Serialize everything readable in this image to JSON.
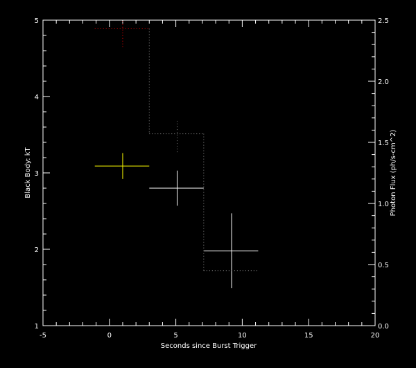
{
  "chart_data": {
    "type": "scatter",
    "xlabel": "Seconds since Burst Trigger",
    "ylabel": "Black Body: kT",
    "ylabel_right": "Photon Flux (ph/s-cm^2)",
    "xlim": [
      -5,
      20
    ],
    "ylim": [
      1,
      5
    ],
    "ylim_right": [
      0,
      2.5
    ],
    "x_ticks": [
      "-5",
      "0",
      "5",
      "10",
      "15",
      "20"
    ],
    "y_ticks": [
      "1",
      "2",
      "3",
      "4",
      "5"
    ],
    "y_ticks_right": [
      "0.0",
      "0.5",
      "1.0",
      "1.5",
      "2.0",
      "2.5"
    ],
    "grid": false,
    "series": [
      {
        "style": "crosses",
        "axis": "left",
        "points": [
          {
            "x": 1.0,
            "xlo": -1.1,
            "xhi": 3.0,
            "y": 3.09,
            "ylo": 2.92,
            "yhi": 3.26,
            "color": "#ffff00"
          },
          {
            "x": 5.1,
            "xlo": 3.0,
            "xhi": 7.1,
            "y": 2.8,
            "ylo": 2.57,
            "yhi": 3.03,
            "color": "#ffffff"
          },
          {
            "x": 9.2,
            "xlo": 7.1,
            "xhi": 11.2,
            "y": 1.98,
            "ylo": 1.49,
            "yhi": 2.47,
            "color": "#ffffff"
          }
        ]
      },
      {
        "style": "dotted-step",
        "axis": "right",
        "points": [
          {
            "x": 1.0,
            "xlo": -1.1,
            "xhi": 3.0,
            "y": 2.43,
            "ylo": 2.28,
            "yhi": 2.5,
            "color": "#ff0000"
          },
          {
            "x": 5.1,
            "xlo": 3.0,
            "xhi": 7.1,
            "y": 1.57,
            "ylo": 1.42,
            "yhi": 1.69,
            "color": "#888888"
          },
          {
            "x": 9.2,
            "xlo": 7.1,
            "xhi": 11.2,
            "y": 0.45,
            "ylo": 0.45,
            "yhi": 0.45,
            "color": "#888888"
          }
        ]
      }
    ]
  }
}
